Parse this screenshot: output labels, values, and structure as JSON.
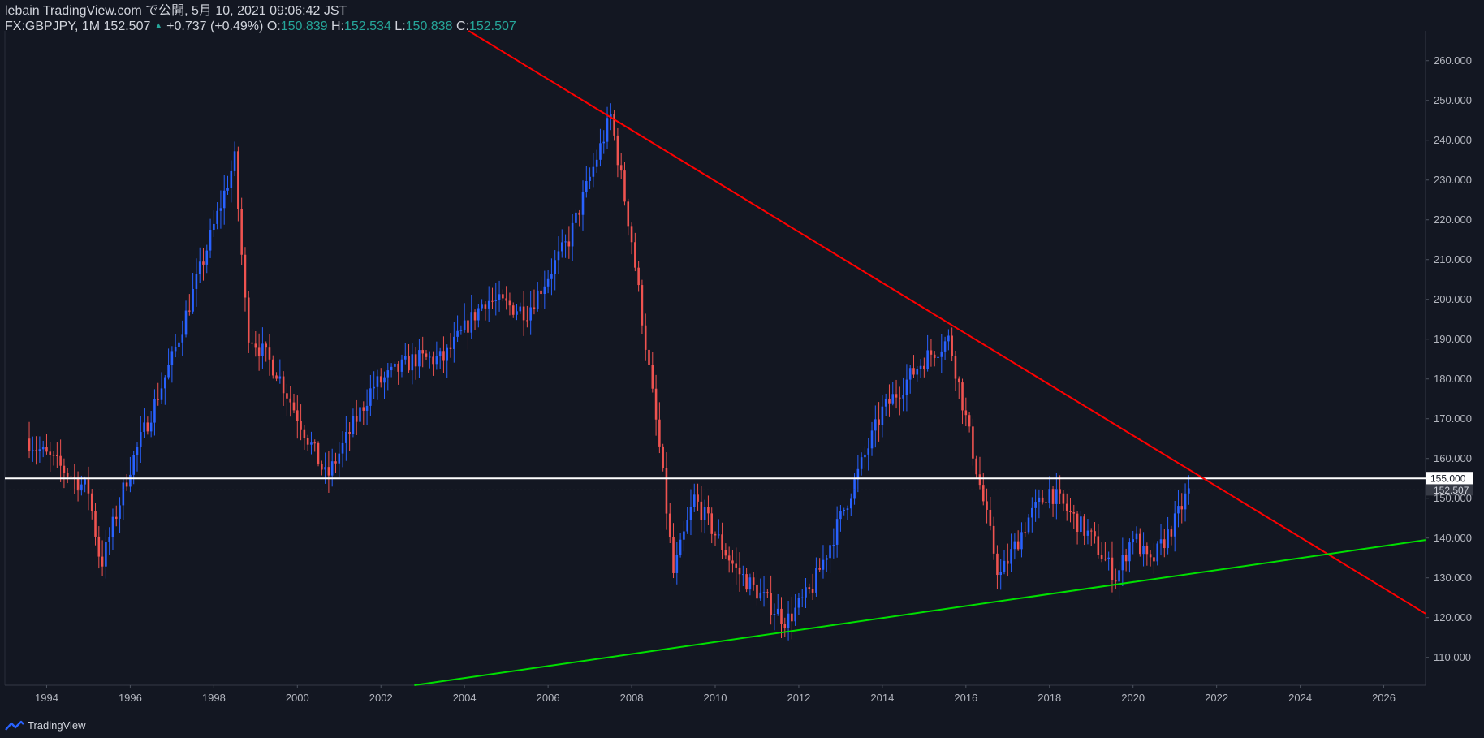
{
  "header": {
    "line1": "lebain TradingView.com で公開, 5月 10, 2021 09:06:42 JST",
    "symbol_line": "FX:GBPJPY, 1M 152.507",
    "change": "+0.737 (+0.49%)",
    "o_label": " O:",
    "o_value": "150.839",
    "h_label": " H:",
    "h_value": "152.534",
    "l_label": " L:",
    "l_value": "150.838",
    "c_label": " C:",
    "c_value": "152.507"
  },
  "footer": {
    "brand": "TradingView"
  },
  "colors": {
    "background": "#131722",
    "up": "#2962ff",
    "down": "#ef5350",
    "resistance": "#ff0000",
    "support": "#00e000",
    "level": "#ffffff"
  },
  "chart_data": {
    "type": "candlestick",
    "symbol": "FX:GBPJPY",
    "interval": "1M",
    "xlim": [
      1993.0,
      2027.0
    ],
    "ylim": [
      103.0,
      267.5
    ],
    "x_ticks": [
      "1994",
      "1996",
      "1998",
      "2000",
      "2002",
      "2004",
      "2006",
      "2008",
      "2010",
      "2012",
      "2014",
      "2016",
      "2018",
      "2020",
      "2022",
      "2024",
      "2026"
    ],
    "y_ticks": [
      "110.000",
      "120.000",
      "130.000",
      "140.000",
      "150.000",
      "160.000",
      "170.000",
      "180.000",
      "190.000",
      "200.000",
      "210.000",
      "220.000",
      "230.000",
      "240.000",
      "250.000",
      "260.000"
    ],
    "key_points": [
      {
        "x": 1993.5,
        "close": 165
      },
      {
        "x": 1995.0,
        "close": 152
      },
      {
        "x": 1995.3,
        "close": 133
      },
      {
        "x": 1996.0,
        "close": 158
      },
      {
        "x": 1997.0,
        "close": 185
      },
      {
        "x": 1998.5,
        "close": 235
      },
      {
        "x": 1998.8,
        "close": 192
      },
      {
        "x": 1999.5,
        "close": 182
      },
      {
        "x": 2000.7,
        "close": 155
      },
      {
        "x": 2001.8,
        "close": 178
      },
      {
        "x": 2002.8,
        "close": 185
      },
      {
        "x": 2003.5,
        "close": 185
      },
      {
        "x": 2004.5,
        "close": 200
      },
      {
        "x": 2005.5,
        "close": 197
      },
      {
        "x": 2006.5,
        "close": 215
      },
      {
        "x": 2007.5,
        "close": 246
      },
      {
        "x": 2008.0,
        "close": 215
      },
      {
        "x": 2008.7,
        "close": 160
      },
      {
        "x": 2009.0,
        "close": 131
      },
      {
        "x": 2009.5,
        "close": 150
      },
      {
        "x": 2010.5,
        "close": 132
      },
      {
        "x": 2011.7,
        "close": 119
      },
      {
        "x": 2012.3,
        "close": 127
      },
      {
        "x": 2013.0,
        "close": 145
      },
      {
        "x": 2014.0,
        "close": 172
      },
      {
        "x": 2015.0,
        "close": 185
      },
      {
        "x": 2015.6,
        "close": 190
      },
      {
        "x": 2016.3,
        "close": 155
      },
      {
        "x": 2016.8,
        "close": 130
      },
      {
        "x": 2017.5,
        "close": 145
      },
      {
        "x": 2018.0,
        "close": 152
      },
      {
        "x": 2019.0,
        "close": 140
      },
      {
        "x": 2019.6,
        "close": 130
      },
      {
        "x": 2020.0,
        "close": 141
      },
      {
        "x": 2020.4,
        "close": 133
      },
      {
        "x": 2021.0,
        "close": 144
      },
      {
        "x": 2021.35,
        "close": 152.507
      }
    ],
    "trendlines": [
      {
        "name": "resistance",
        "color": "#ff0000",
        "from": {
          "x": 2004.1,
          "y": 267.5
        },
        "to": {
          "x": 2027.0,
          "y": 121
        }
      },
      {
        "name": "support",
        "color": "#00e000",
        "from": {
          "x": 2002.8,
          "y": 103.0
        },
        "to": {
          "x": 2027.0,
          "y": 139.5
        }
      }
    ],
    "horizontal_levels": [
      {
        "value": 155.0,
        "label": "155.000",
        "color": "#ffffff"
      }
    ],
    "last_price": {
      "value": 152.507,
      "label": "152.507"
    }
  }
}
